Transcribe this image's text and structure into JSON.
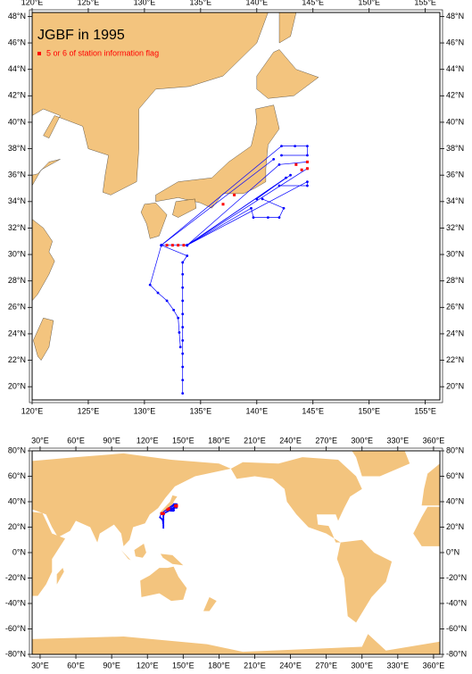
{
  "maps": [
    {
      "title": "JGBF in 1995",
      "legend": "5 or 6 of station information flag",
      "xlim": [
        120,
        156.3
      ],
      "ylim": [
        19,
        48.3
      ],
      "xticks": [
        {
          "value": 120,
          "label": "120°E"
        },
        {
          "value": 125,
          "label": "125°E"
        },
        {
          "value": 130,
          "label": "130°E"
        },
        {
          "value": 135,
          "label": "135°E"
        },
        {
          "value": 140,
          "label": "140°E"
        },
        {
          "value": 145,
          "label": "145°E"
        },
        {
          "value": 150,
          "label": "150°E"
        },
        {
          "value": 155,
          "label": "155°E"
        }
      ],
      "yticks": [
        {
          "value": 20,
          "label": "20°N"
        },
        {
          "value": 22,
          "label": "22°N"
        },
        {
          "value": 24,
          "label": "24°N"
        },
        {
          "value": 26,
          "label": "26°N"
        },
        {
          "value": 28,
          "label": "28°N"
        },
        {
          "value": 30,
          "label": "30°N"
        },
        {
          "value": 32,
          "label": "32°N"
        },
        {
          "value": 34,
          "label": "34°N"
        },
        {
          "value": 36,
          "label": "36°N"
        },
        {
          "value": 38,
          "label": "38°N"
        },
        {
          "value": 40,
          "label": "40°N"
        },
        {
          "value": 42,
          "label": "42°N"
        },
        {
          "value": 44,
          "label": "44°N"
        },
        {
          "value": 46,
          "label": "46°N"
        },
        {
          "value": 48,
          "label": "48°N"
        }
      ]
    },
    {
      "xlim": [
        23.3,
        365.3
      ],
      "ylim": [
        -80,
        80
      ],
      "xticks": [
        {
          "value": 30,
          "label": "30°E"
        },
        {
          "value": 60,
          "label": "60°E"
        },
        {
          "value": 90,
          "label": "90°E"
        },
        {
          "value": 120,
          "label": "120°E"
        },
        {
          "value": 150,
          "label": "150°E"
        },
        {
          "value": 180,
          "label": "180°E"
        },
        {
          "value": 210,
          "label": "210°E"
        },
        {
          "value": 240,
          "label": "240°E"
        },
        {
          "value": 270,
          "label": "270°E"
        },
        {
          "value": 300,
          "label": "300°E"
        },
        {
          "value": 330,
          "label": "330°E"
        },
        {
          "value": 360,
          "label": "360°E"
        }
      ],
      "yticks": [
        {
          "value": -80,
          "label": "-80°N"
        },
        {
          "value": -60,
          "label": "-60°N"
        },
        {
          "value": -40,
          "label": "-40°N"
        },
        {
          "value": -20,
          "label": "-20°N"
        },
        {
          "value": 0,
          "label": "0°N"
        },
        {
          "value": 20,
          "label": "20°N"
        },
        {
          "value": 40,
          "label": "40°N"
        },
        {
          "value": 60,
          "label": "60°N"
        },
        {
          "value": 80,
          "label": "80°N"
        }
      ]
    }
  ],
  "track_color": "#0000ff",
  "flag_color": "#ff0000",
  "land_color": "#f3c47e",
  "tracks": [
    [
      [
        133.4,
        19.5
      ],
      [
        133.4,
        20.5
      ],
      [
        133.4,
        21.5
      ],
      [
        133.4,
        22.5
      ],
      [
        133.4,
        23.5
      ],
      [
        133.4,
        24.5
      ],
      [
        133.4,
        25.5
      ],
      [
        133.4,
        26.5
      ],
      [
        133.4,
        27.5
      ],
      [
        133.4,
        28.5
      ],
      [
        133.4,
        29.4
      ],
      [
        133.8,
        29.9
      ],
      [
        131.5,
        30.7
      ]
    ],
    [
      [
        131.5,
        30.7
      ],
      [
        130.5,
        27.7
      ],
      [
        131.2,
        27.1
      ],
      [
        132,
        26.5
      ],
      [
        132.6,
        25.8
      ],
      [
        133,
        25.2
      ],
      [
        133.1,
        24.1
      ],
      [
        133.2,
        23
      ]
    ],
    [
      [
        131.5,
        30.7
      ],
      [
        133.8,
        30.7
      ],
      [
        143,
        36
      ]
    ],
    [
      [
        131.5,
        30.7
      ],
      [
        141.5,
        37.2
      ]
    ],
    [
      [
        131.5,
        30.7
      ],
      [
        142.2,
        38.2
      ],
      [
        143.4,
        38.2
      ],
      [
        144.5,
        38.2
      ],
      [
        144.5,
        37.5
      ],
      [
        142.2,
        37.5
      ]
    ],
    [
      [
        133.8,
        30.7
      ],
      [
        144.5,
        36.5
      ]
    ],
    [
      [
        133.8,
        30.7
      ],
      [
        142,
        36.8
      ],
      [
        144.5,
        37
      ]
    ],
    [
      [
        133.8,
        30.7
      ],
      [
        144.5,
        35.5
      ],
      [
        144.5,
        35.2
      ],
      [
        142,
        35.2
      ]
    ],
    [
      [
        133.8,
        30.7
      ],
      [
        139.5,
        33.5
      ],
      [
        139.7,
        32.8
      ],
      [
        141,
        32.8
      ],
      [
        142,
        32.8
      ],
      [
        142.4,
        33.5
      ],
      [
        140.5,
        34.2
      ]
    ],
    [
      [
        133.8,
        30.7
      ],
      [
        142.6,
        35.8
      ],
      [
        140,
        34.2
      ]
    ]
  ],
  "flagged": [
    [
      132,
      30.7
    ],
    [
      132.5,
      30.7
    ],
    [
      133,
      30.7
    ],
    [
      133.5,
      30.7
    ],
    [
      144.5,
      36.5
    ],
    [
      144,
      36.4
    ],
    [
      144.5,
      37
    ],
    [
      143.5,
      36.8
    ],
    [
      138,
      34.5
    ],
    [
      137,
      33.8
    ]
  ]
}
